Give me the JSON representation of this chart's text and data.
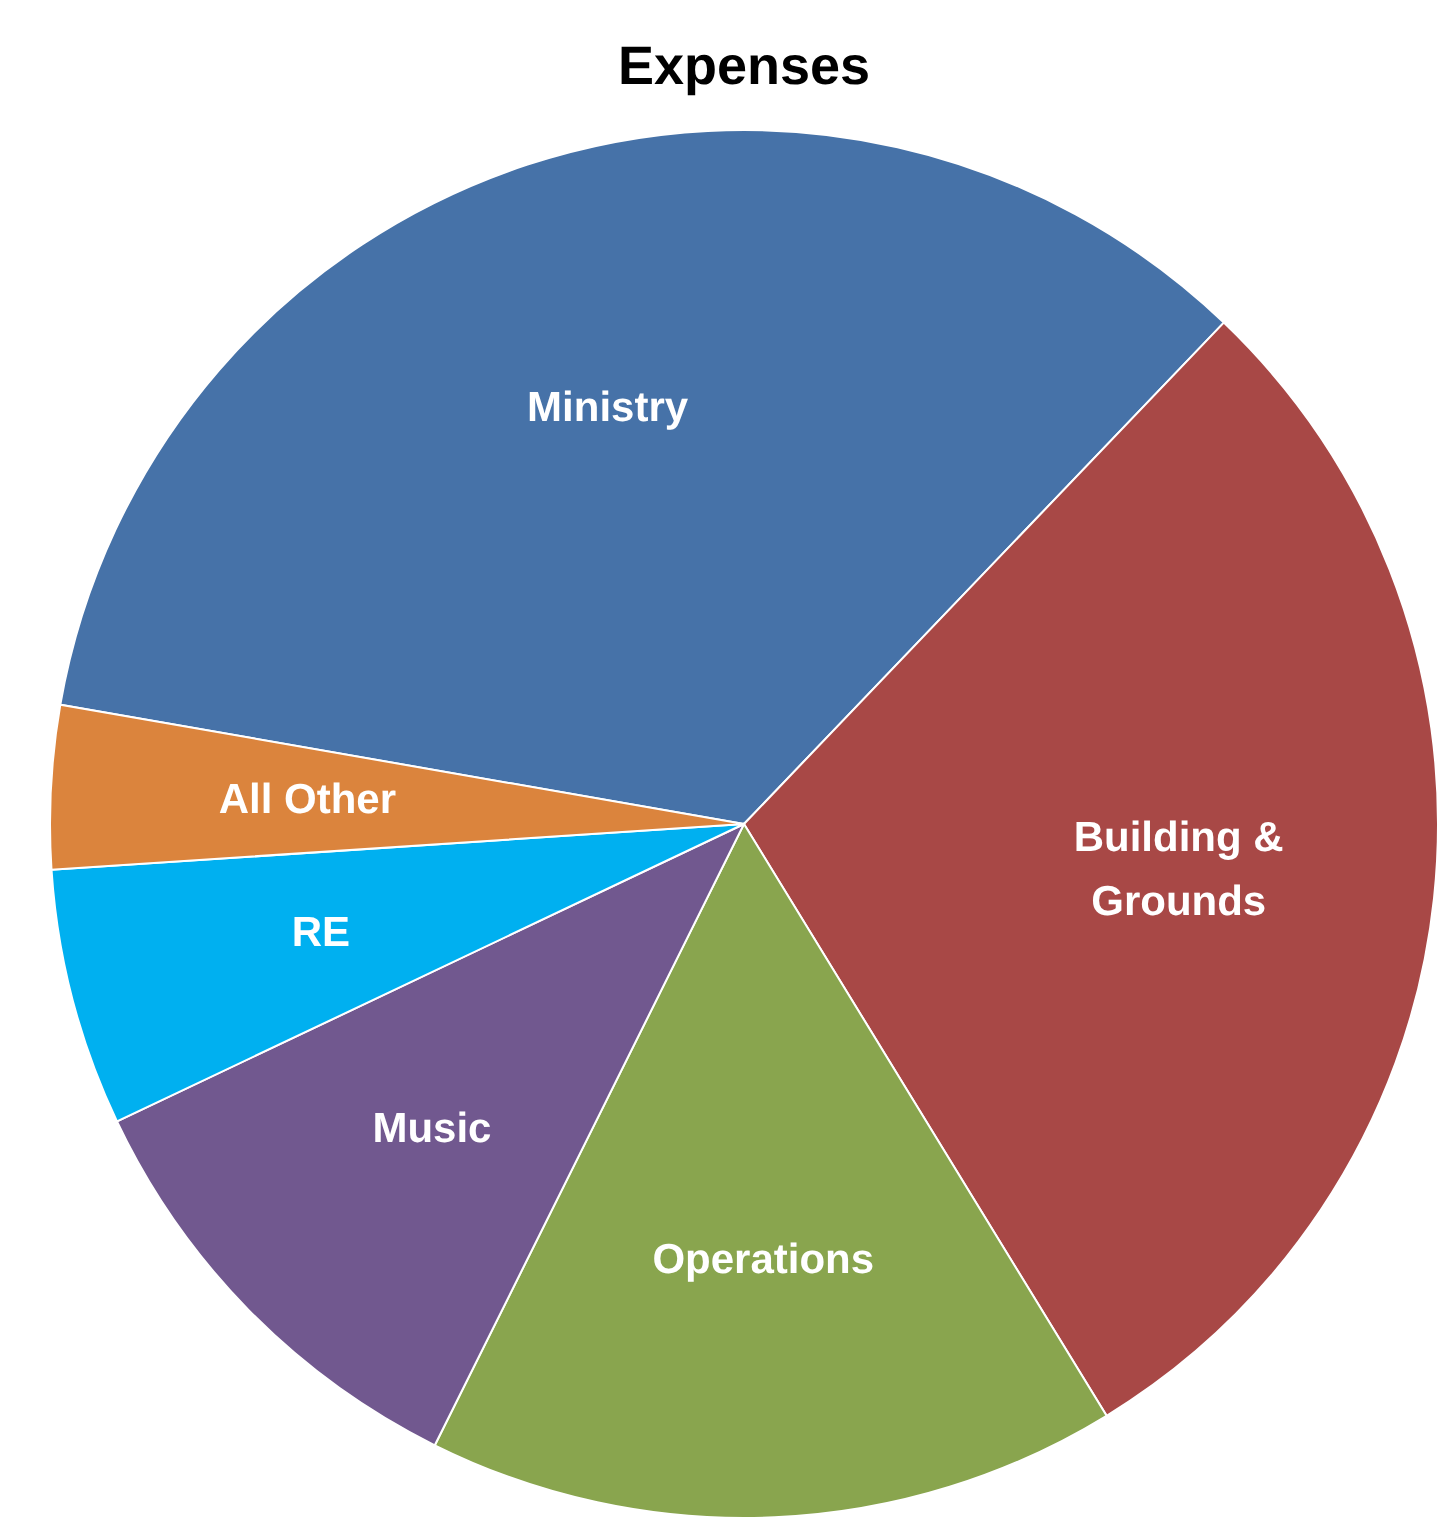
{
  "chart_data": {
    "type": "pie",
    "title": "Expenses",
    "categories": [
      "Ministry",
      "Building & Grounds",
      "Operations",
      "Music",
      "RE",
      "All Other"
    ],
    "values": [
      34.4,
      29.1,
      16.1,
      10.6,
      6.0,
      3.8
    ],
    "colors": [
      "#4672a8",
      "#a84846",
      "#89a54e",
      "#71588f",
      "#00b0f0",
      "#db843d"
    ],
    "legend": false
  }
}
